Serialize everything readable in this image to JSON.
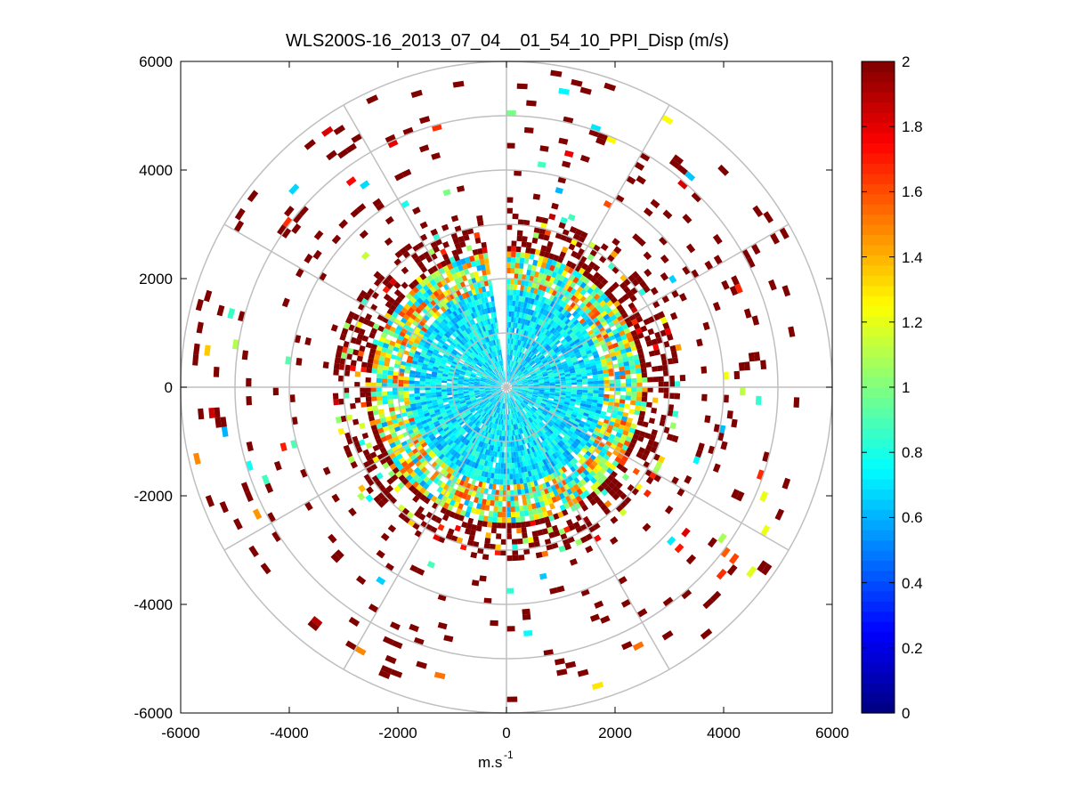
{
  "chart_data": {
    "type": "heatmap",
    "subtype": "polar-ppi",
    "title": "WLS200S-16_2013_07_04__01_54_10_PPI_Disp (m/s)",
    "xlabel_base": "m.s",
    "xlabel_exp": "-1",
    "ylabel": "",
    "xlim": [
      -6000,
      6000
    ],
    "ylim": [
      -6000,
      6000
    ],
    "x_ticks": [
      -6000,
      -4000,
      -2000,
      0,
      2000,
      4000,
      6000
    ],
    "y_ticks": [
      -6000,
      -4000,
      -2000,
      0,
      2000,
      4000,
      6000
    ],
    "x_tick_labels": [
      "-6000",
      "-4000",
      "-2000",
      "0",
      "2000",
      "4000",
      "6000"
    ],
    "y_tick_labels": [
      "6000",
      "4000",
      "2000",
      "0",
      "-2000",
      "-4000",
      "-6000"
    ],
    "range_rings": [
      1000,
      2000,
      3000,
      4000,
      5000,
      6000
    ],
    "spoke_angles_deg": [
      0,
      30,
      60,
      90,
      120,
      150,
      180,
      210,
      240,
      270,
      300,
      330
    ],
    "colormap": "jet",
    "colorbar": {
      "min": 0,
      "max": 2,
      "ticks": [
        0,
        0.2,
        0.4,
        0.6,
        0.8,
        1,
        1.2,
        1.4,
        1.6,
        1.8,
        2
      ],
      "tick_labels": [
        "0",
        "0.2",
        "0.4",
        "0.6",
        "0.8",
        "1",
        "1.2",
        "1.4",
        "1.6",
        "1.8",
        "2"
      ],
      "levels": 64
    },
    "field_summary": {
      "description_of_value_structure": "range-dependent dispersion",
      "range_bins": [
        {
          "r_min": 0,
          "r_max": 1800,
          "typical_value": 0.7
        },
        {
          "r_min": 1800,
          "r_max": 2500,
          "typical_value": 1.1
        },
        {
          "r_min": 2500,
          "r_max": 3200,
          "typical_value": 2.0
        },
        {
          "r_min": 3200,
          "r_max": 6000,
          "typical_value": 2.0
        }
      ],
      "gap_azimuth_deg": [
        -8,
        0
      ]
    }
  }
}
